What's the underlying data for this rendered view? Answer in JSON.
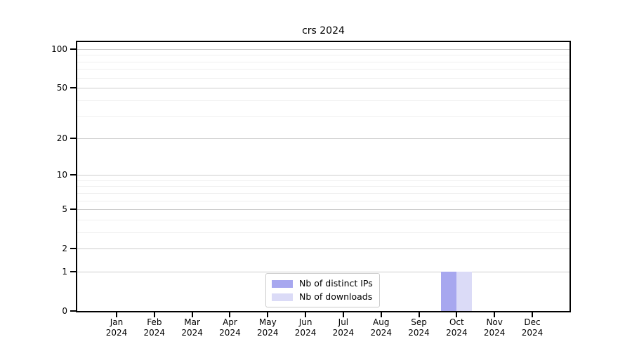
{
  "chart_data": {
    "type": "bar",
    "title": "crs 2024",
    "categories": [
      "Jan",
      "Feb",
      "Mar",
      "Apr",
      "May",
      "Jun",
      "Jul",
      "Aug",
      "Sep",
      "Oct",
      "Nov",
      "Dec"
    ],
    "x_tick_year": "2024",
    "series": [
      {
        "name": "Nb of distinct IPs",
        "color": "#a7a7ef",
        "values": [
          0,
          0,
          0,
          0,
          0,
          0,
          0,
          0,
          0,
          1,
          0,
          0
        ]
      },
      {
        "name": "Nb of downloads",
        "color": "#dbdbf7",
        "values": [
          0,
          0,
          0,
          0,
          0,
          0,
          0,
          0,
          0,
          1,
          0,
          0
        ]
      }
    ],
    "y_ticks": [
      0,
      1,
      2,
      5,
      10,
      20,
      50,
      100
    ],
    "y_minor_gridlines": [
      3,
      4,
      6,
      7,
      8,
      9,
      30,
      40,
      60,
      70,
      80,
      90
    ],
    "y_scale": "log1p",
    "ylim": [
      0,
      113
    ],
    "grid": true,
    "legend_position": "bottom-center"
  }
}
